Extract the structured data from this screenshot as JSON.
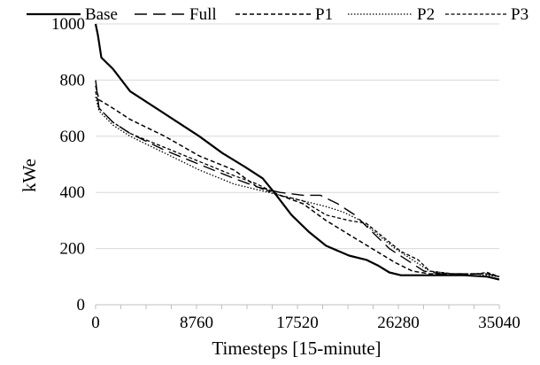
{
  "chart_data": {
    "type": "line",
    "title": "",
    "xlabel": "Timesteps [15-minute]",
    "ylabel": "kWe",
    "xlim": [
      0,
      35040
    ],
    "ylim": [
      0,
      1000
    ],
    "x_ticks": [
      0,
      8760,
      17520,
      26280,
      35040
    ],
    "y_ticks": [
      0,
      200,
      400,
      600,
      800,
      1000
    ],
    "grid": "horizontal",
    "legend": "top",
    "series": [
      {
        "name": "Base",
        "color": "#000000",
        "dash": "solid",
        "points": [
          [
            0,
            1000
          ],
          [
            200,
            960
          ],
          [
            500,
            880
          ],
          [
            1500,
            840
          ],
          [
            3000,
            760
          ],
          [
            6000,
            680
          ],
          [
            9000,
            600
          ],
          [
            11000,
            540
          ],
          [
            13000,
            490
          ],
          [
            14500,
            450
          ],
          [
            15500,
            400
          ],
          [
            17000,
            320
          ],
          [
            18500,
            260
          ],
          [
            20000,
            210
          ],
          [
            22000,
            175
          ],
          [
            23500,
            160
          ],
          [
            24500,
            140
          ],
          [
            25500,
            115
          ],
          [
            26500,
            105
          ],
          [
            28000,
            105
          ],
          [
            30000,
            105
          ],
          [
            32000,
            105
          ],
          [
            34000,
            100
          ],
          [
            35040,
            90
          ]
        ]
      },
      {
        "name": "Full",
        "color": "#000000",
        "dash": "long-dash",
        "points": [
          [
            0,
            800
          ],
          [
            300,
            700
          ],
          [
            1500,
            650
          ],
          [
            3000,
            610
          ],
          [
            6000,
            550
          ],
          [
            9000,
            500
          ],
          [
            12000,
            450
          ],
          [
            14000,
            420
          ],
          [
            16000,
            400
          ],
          [
            18000,
            390
          ],
          [
            19500,
            390
          ],
          [
            21000,
            360
          ],
          [
            22500,
            320
          ],
          [
            24000,
            260
          ],
          [
            25500,
            200
          ],
          [
            27000,
            160
          ],
          [
            28500,
            120
          ],
          [
            30000,
            110
          ],
          [
            32000,
            110
          ],
          [
            34000,
            110
          ],
          [
            35040,
            100
          ]
        ]
      },
      {
        "name": "P1",
        "color": "#000000",
        "dash": "dash",
        "points": [
          [
            0,
            780
          ],
          [
            300,
            730
          ],
          [
            1500,
            700
          ],
          [
            3000,
            660
          ],
          [
            6000,
            600
          ],
          [
            9000,
            530
          ],
          [
            12000,
            480
          ],
          [
            14000,
            420
          ],
          [
            16000,
            390
          ],
          [
            18000,
            360
          ],
          [
            20000,
            300
          ],
          [
            22000,
            250
          ],
          [
            24000,
            200
          ],
          [
            26000,
            150
          ],
          [
            27500,
            120
          ],
          [
            29000,
            110
          ],
          [
            32000,
            110
          ],
          [
            34000,
            110
          ],
          [
            35040,
            100
          ]
        ]
      },
      {
        "name": "P2",
        "color": "#000000",
        "dash": "dot",
        "points": [
          [
            0,
            740
          ],
          [
            300,
            690
          ],
          [
            1500,
            640
          ],
          [
            3000,
            600
          ],
          [
            6000,
            540
          ],
          [
            9000,
            480
          ],
          [
            12000,
            430
          ],
          [
            14000,
            410
          ],
          [
            16000,
            390
          ],
          [
            18000,
            370
          ],
          [
            20000,
            350
          ],
          [
            21500,
            330
          ],
          [
            23000,
            300
          ],
          [
            24500,
            250
          ],
          [
            26000,
            200
          ],
          [
            27500,
            160
          ],
          [
            29000,
            120
          ],
          [
            31000,
            110
          ],
          [
            33000,
            110
          ],
          [
            35040,
            100
          ]
        ]
      },
      {
        "name": "P3",
        "color": "#000000",
        "dash": "short-dash",
        "points": [
          [
            0,
            760
          ],
          [
            300,
            700
          ],
          [
            1500,
            650
          ],
          [
            3000,
            610
          ],
          [
            6000,
            560
          ],
          [
            9000,
            510
          ],
          [
            12000,
            460
          ],
          [
            14000,
            430
          ],
          [
            16000,
            390
          ],
          [
            18000,
            370
          ],
          [
            20000,
            320
          ],
          [
            22000,
            300
          ],
          [
            23500,
            290
          ],
          [
            25000,
            240
          ],
          [
            26500,
            190
          ],
          [
            28000,
            160
          ],
          [
            29000,
            120
          ],
          [
            31000,
            110
          ],
          [
            33000,
            110
          ],
          [
            34000,
            115
          ],
          [
            35040,
            100
          ]
        ]
      }
    ]
  }
}
